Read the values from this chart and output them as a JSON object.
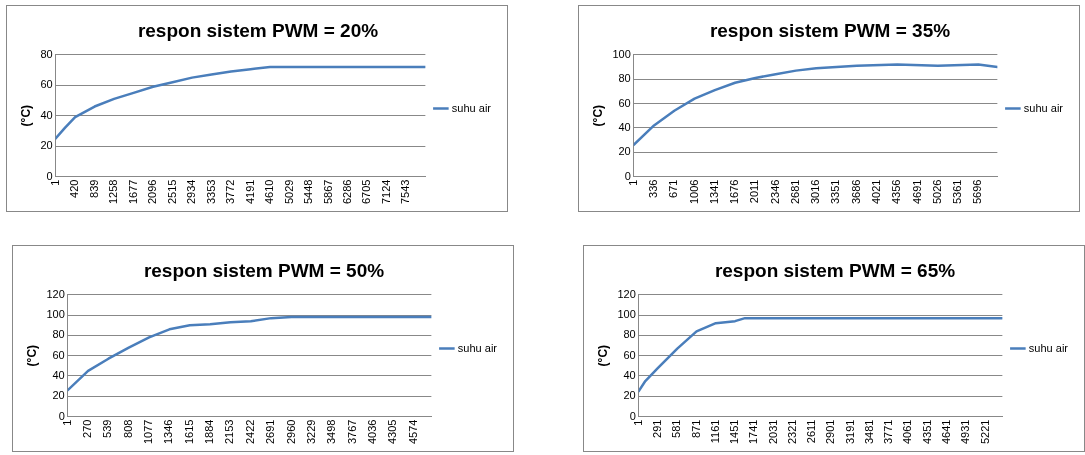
{
  "chart_data": [
    {
      "type": "line",
      "title": "respon sistem PWM = 20%",
      "ylabel": "(°C)",
      "x": [
        1,
        200,
        420,
        839,
        1258,
        1677,
        2096,
        2515,
        2934,
        3353,
        3772,
        4191,
        4610,
        5500,
        6500,
        7950
      ],
      "series": [
        {
          "name": "suhu air",
          "color": "#4a7ebb",
          "values": [
            25,
            32,
            39,
            46,
            51,
            55,
            59,
            62,
            65,
            67,
            69,
            70.5,
            72,
            72,
            72,
            72
          ]
        }
      ],
      "xlim": [
        1,
        7950
      ],
      "xticks": [
        1,
        420,
        839,
        1258,
        1677,
        2096,
        2515,
        2934,
        3353,
        3772,
        4191,
        4610,
        5029,
        5448,
        5867,
        6286,
        6705,
        7124,
        7543
      ],
      "ylim": [
        0,
        80
      ],
      "yticks": [
        0,
        20,
        40,
        60,
        80
      ],
      "grid": "y",
      "legend": "right",
      "marker": "none",
      "line_style": "solid"
    },
    {
      "type": "line",
      "title": "respon sistem PWM = 35%",
      "ylabel": "(°C)",
      "x": [
        1,
        336,
        671,
        1006,
        1341,
        1676,
        2011,
        2346,
        2681,
        3016,
        3351,
        3686,
        4356,
        5026,
        5696,
        6010
      ],
      "series": [
        {
          "name": "suhu air",
          "color": "#4a7ebb",
          "values": [
            26,
            42,
            54,
            64,
            71,
            77,
            81,
            84,
            87,
            89,
            90,
            91,
            92,
            91,
            92,
            90
          ]
        }
      ],
      "xlim": [
        1,
        6010
      ],
      "xticks": [
        1,
        336,
        671,
        1006,
        1341,
        1676,
        2011,
        2346,
        2681,
        3016,
        3351,
        3686,
        4021,
        4356,
        4691,
        5026,
        5361,
        5696
      ],
      "ylim": [
        0,
        100
      ],
      "yticks": [
        0,
        20,
        40,
        60,
        80,
        100
      ],
      "grid": "y",
      "legend": "right",
      "marker": "none",
      "line_style": "solid"
    },
    {
      "type": "line",
      "title": "respon sistem PWM = 50%",
      "ylabel": "(°C)",
      "x": [
        1,
        270,
        539,
        808,
        1077,
        1346,
        1615,
        1884,
        2153,
        2422,
        2691,
        2960,
        4810
      ],
      "series": [
        {
          "name": "suhu air",
          "color": "#4a7ebb",
          "values": [
            26,
            45,
            57,
            68,
            78,
            86,
            90,
            91,
            93,
            94,
            97,
            98,
            98
          ]
        }
      ],
      "xlim": [
        1,
        4810
      ],
      "xticks": [
        1,
        270,
        539,
        808,
        1077,
        1346,
        1615,
        1884,
        2153,
        2422,
        2691,
        2960,
        3229,
        3498,
        3767,
        4036,
        4305,
        4574
      ],
      "ylim": [
        0,
        120
      ],
      "yticks": [
        0,
        20,
        40,
        60,
        80,
        100,
        120
      ],
      "grid": "y",
      "legend": "right",
      "marker": "none",
      "line_style": "solid"
    },
    {
      "type": "line",
      "title": "respon sistem PWM = 65%",
      "ylabel": "(°C)",
      "x": [
        1,
        100,
        291,
        581,
        871,
        1161,
        1451,
        1600,
        5475
      ],
      "series": [
        {
          "name": "suhu air",
          "color": "#4a7ebb",
          "values": [
            25,
            35,
            48,
            67,
            84,
            92,
            94,
            97,
            97
          ]
        }
      ],
      "xlim": [
        1,
        5475
      ],
      "xticks": [
        1,
        291,
        581,
        871,
        1161,
        1451,
        1741,
        2031,
        2321,
        2611,
        2901,
        3191,
        3481,
        3771,
        4061,
        4351,
        4641,
        4931,
        5221
      ],
      "ylim": [
        0,
        120
      ],
      "yticks": [
        0,
        20,
        40,
        60,
        80,
        100,
        120
      ],
      "grid": "y",
      "legend": "right",
      "marker": "none",
      "line_style": "solid"
    }
  ]
}
